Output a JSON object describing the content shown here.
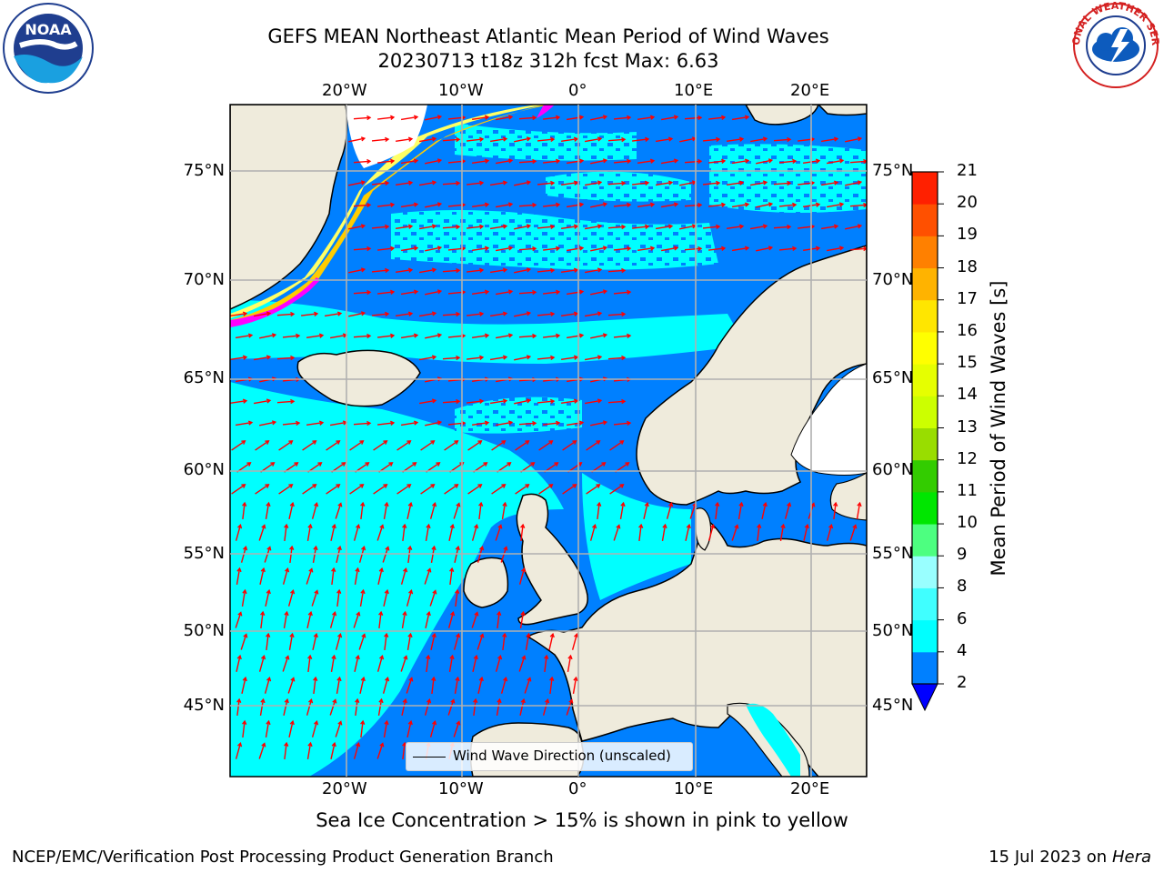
{
  "header": {
    "title_line1": "GEFS MEAN Northeast Atlantic Mean Period of Wind Waves",
    "title_line2": "20230713 t18z 312h fcst   Max: 6.63"
  },
  "logos": {
    "noaa": {
      "text": "NOAA",
      "ring_text": "NATIONAL OCEANIC AND ATMOSPHERIC ADMINISTRATION · U.S. DEPARTMENT OF COMMERCE"
    },
    "nws": {
      "ring_text": "NATIONAL WEATHER SERVICE"
    }
  },
  "map": {
    "lon_range": [
      -30,
      25
    ],
    "lat_range": [
      41,
      78
    ],
    "lon_ticks": [
      "20°W",
      "10°W",
      "0°",
      "10°E",
      "20°E"
    ],
    "lat_ticks": [
      "75°N",
      "70°N",
      "65°N",
      "60°N",
      "55°N",
      "50°N",
      "45°N"
    ],
    "grid": true,
    "land_color": "#efebdc",
    "ice_colors": [
      "#ff00ff",
      "#ff99cc",
      "#ffcc00",
      "#ffff66"
    ],
    "arrow_color": "#ff0000"
  },
  "colorbar": {
    "title": "Mean Period of Wind Waves [s]",
    "ticks": [
      "2",
      "4",
      "6",
      "8",
      "9",
      "10",
      "11",
      "12",
      "13",
      "14",
      "15",
      "16",
      "17",
      "18",
      "19",
      "20",
      "21"
    ],
    "colors": [
      "#0080ff",
      "#00ffff",
      "#40ffff",
      "#99ffff",
      "#4dff80",
      "#00e600",
      "#33cc00",
      "#99dd00",
      "#ccff00",
      "#e6ff00",
      "#ffff00",
      "#ffe600",
      "#ffb300",
      "#ff8000",
      "#ff5000",
      "#ff2000"
    ],
    "under_color": "#0000ff"
  },
  "legend": {
    "label": "Wind Wave Direction (unscaled)"
  },
  "footer": {
    "note": "Sea Ice Concentration > 15% is shown in pink to yellow",
    "left": "NCEP/EMC/Verification Post Processing Product Generation Branch",
    "right_date": "15 Jul 2023 on ",
    "right_host": "Hera"
  }
}
